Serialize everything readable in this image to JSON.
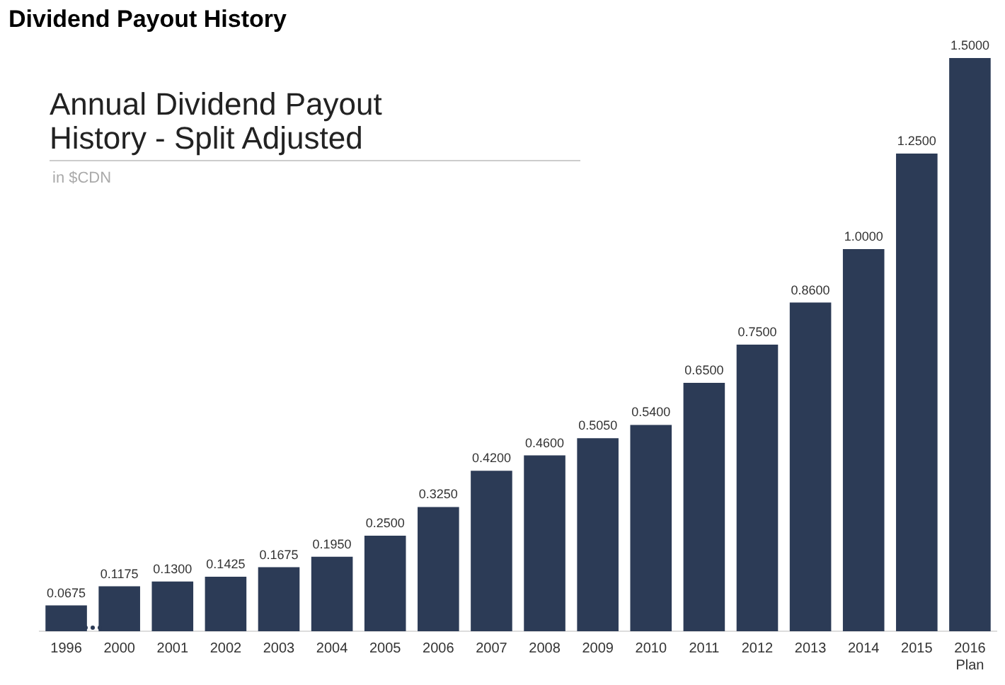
{
  "chart_data": {
    "type": "bar",
    "title": "Dividend Payout History",
    "subtitle": "Annual Dividend Payout History - Split Adjusted",
    "annotations": [
      "in $CDN"
    ],
    "categories": [
      "1996",
      "2000",
      "2001",
      "2002",
      "2003",
      "2004",
      "2005",
      "2006",
      "2007",
      "2008",
      "2009",
      "2010",
      "2011",
      "2012",
      "2013",
      "2014",
      "2015",
      "2016\nPlan"
    ],
    "values": [
      0.0675,
      0.1175,
      0.13,
      0.1425,
      0.1675,
      0.195,
      0.25,
      0.325,
      0.42,
      0.46,
      0.505,
      0.54,
      0.65,
      0.75,
      0.86,
      1.0,
      1.25,
      1.5
    ],
    "color": "#2c3b56",
    "value_labels": [
      "0.0675",
      "0.1175",
      "0.1300",
      "0.1425",
      "0.1675",
      "0.1950",
      "0.2500",
      "0.3250",
      "0.4200",
      "0.4600",
      "0.5050",
      "0.5400",
      "0.6500",
      "0.7500",
      "0.8600",
      "1.0000",
      "1.2500",
      "1.5000"
    ],
    "grid": false,
    "legend": false,
    "tick_labels": "x"
  }
}
